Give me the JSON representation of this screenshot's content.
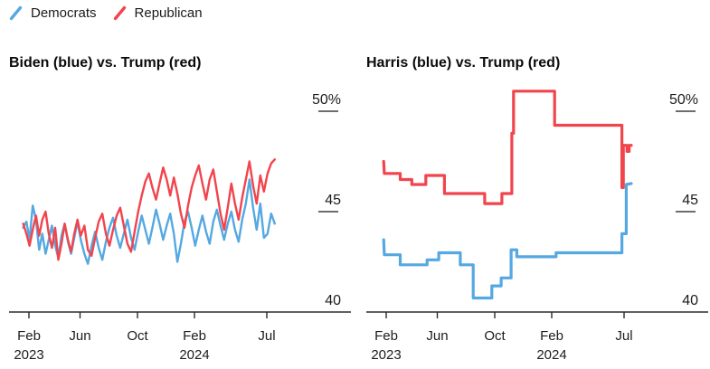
{
  "legend": {
    "items": [
      {
        "label": "Democrats",
        "color": "#55A8E1",
        "swatch": "slash-icon"
      },
      {
        "label": "Republican",
        "color": "#F2444D",
        "swatch": "slash-icon"
      }
    ]
  },
  "colors": {
    "democrat_blue": "#55A8E1",
    "republican_red": "#F2444D",
    "axis": "#2b2b2b",
    "tick_dash": "#3d3d3d",
    "label_text": "#1c1c1c"
  },
  "chart_data": [
    {
      "type": "line",
      "title": "Biden (blue) vs. Trump (red)",
      "x_unit": "months_since_Jan_2023",
      "xlim": [
        0.3,
        19
      ],
      "ylim": [
        40,
        51.5
      ],
      "grid": false,
      "legend_position": "top-left-shared",
      "x_ticks": [
        {
          "m": 1,
          "label": "Feb",
          "sublabel": "2023"
        },
        {
          "m": 5,
          "label": "Jun"
        },
        {
          "m": 9,
          "label": "Oct"
        },
        {
          "m": 13,
          "label": "Feb",
          "sublabel": "2024"
        },
        {
          "m": 18,
          "label": "Jul"
        }
      ],
      "y_ticks": [
        {
          "v": 50,
          "label": "50%"
        },
        {
          "v": 45,
          "label": "45"
        },
        {
          "v": 40,
          "label": "40"
        }
      ],
      "series": [
        {
          "name": "Biden (Democrats)",
          "color_key": "democrat_blue",
          "points": [
            [
              0.55,
              44.2
            ],
            [
              0.8,
              44.5
            ],
            [
              1.05,
              43.6
            ],
            [
              1.3,
              45.3
            ],
            [
              1.55,
              44.6
            ],
            [
              1.8,
              43.1
            ],
            [
              2.05,
              43.9
            ],
            [
              2.3,
              42.9
            ],
            [
              2.55,
              43.6
            ],
            [
              2.8,
              44.3
            ],
            [
              3.05,
              43.3
            ],
            [
              3.3,
              42.7
            ],
            [
              3.55,
              43.8
            ],
            [
              3.8,
              44.4
            ],
            [
              4.05,
              43.5
            ],
            [
              4.3,
              42.9
            ],
            [
              4.55,
              43.7
            ],
            [
              4.8,
              44.5
            ],
            [
              5.05,
              43.6
            ],
            [
              5.3,
              42.9
            ],
            [
              5.55,
              42.4
            ],
            [
              5.8,
              43.3
            ],
            [
              6.05,
              44.0
            ],
            [
              6.3,
              43.2
            ],
            [
              6.55,
              42.6
            ],
            [
              6.8,
              43.5
            ],
            [
              7.05,
              44.2
            ],
            [
              7.3,
              44.7
            ],
            [
              7.55,
              43.8
            ],
            [
              7.8,
              43.2
            ],
            [
              8.05,
              43.9
            ],
            [
              8.3,
              44.6
            ],
            [
              8.55,
              43.7
            ],
            [
              8.8,
              43.1
            ],
            [
              9.05,
              44.0
            ],
            [
              9.3,
              44.8
            ],
            [
              9.55,
              44.1
            ],
            [
              9.8,
              43.4
            ],
            [
              10.05,
              44.2
            ],
            [
              10.3,
              45.1
            ],
            [
              10.55,
              44.4
            ],
            [
              10.8,
              43.6
            ],
            [
              11.05,
              44.3
            ],
            [
              11.3,
              44.9
            ],
            [
              11.55,
              43.9
            ],
            [
              11.8,
              42.5
            ],
            [
              12.05,
              43.4
            ],
            [
              12.3,
              44.5
            ],
            [
              12.55,
              45.0
            ],
            [
              12.8,
              44.2
            ],
            [
              13.05,
              43.3
            ],
            [
              13.3,
              44.1
            ],
            [
              13.55,
              44.8
            ],
            [
              13.8,
              44.0
            ],
            [
              14.05,
              43.4
            ],
            [
              14.3,
              44.5
            ],
            [
              14.55,
              45.1
            ],
            [
              14.8,
              44.3
            ],
            [
              15.05,
              43.6
            ],
            [
              15.3,
              44.4
            ],
            [
              15.55,
              45.0
            ],
            [
              15.8,
              44.1
            ],
            [
              16.05,
              43.5
            ],
            [
              16.3,
              44.6
            ],
            [
              16.55,
              45.4
            ],
            [
              16.8,
              46.6
            ],
            [
              17.05,
              45.2
            ],
            [
              17.3,
              44.1
            ],
            [
              17.55,
              45.4
            ],
            [
              17.8,
              43.7
            ],
            [
              18.05,
              43.9
            ],
            [
              18.3,
              44.9
            ],
            [
              18.55,
              44.4
            ]
          ]
        },
        {
          "name": "Trump (Republican)",
          "color_key": "republican_red",
          "points": [
            [
              0.55,
              44.4
            ],
            [
              0.8,
              43.9
            ],
            [
              1.05,
              43.3
            ],
            [
              1.3,
              44.1
            ],
            [
              1.55,
              44.8
            ],
            [
              1.8,
              43.8
            ],
            [
              2.05,
              44.6
            ],
            [
              2.3,
              45.0
            ],
            [
              2.55,
              43.9
            ],
            [
              2.8,
              43.2
            ],
            [
              3.05,
              44.2
            ],
            [
              3.3,
              42.6
            ],
            [
              3.55,
              43.4
            ],
            [
              3.8,
              44.4
            ],
            [
              4.05,
              43.6
            ],
            [
              4.3,
              43.0
            ],
            [
              4.55,
              43.9
            ],
            [
              4.8,
              44.6
            ],
            [
              5.05,
              43.8
            ],
            [
              5.3,
              44.3
            ],
            [
              5.55,
              43.1
            ],
            [
              5.8,
              42.8
            ],
            [
              6.05,
              43.7
            ],
            [
              6.3,
              44.5
            ],
            [
              6.55,
              44.9
            ],
            [
              6.8,
              43.9
            ],
            [
              7.05,
              43.3
            ],
            [
              7.3,
              44.1
            ],
            [
              7.55,
              44.8
            ],
            [
              7.8,
              45.2
            ],
            [
              8.05,
              44.3
            ],
            [
              8.3,
              43.4
            ],
            [
              8.55,
              43.0
            ],
            [
              8.8,
              44.0
            ],
            [
              9.05,
              45.0
            ],
            [
              9.3,
              45.8
            ],
            [
              9.55,
              46.5
            ],
            [
              9.8,
              46.9
            ],
            [
              10.05,
              46.2
            ],
            [
              10.3,
              45.6
            ],
            [
              10.55,
              46.4
            ],
            [
              10.8,
              47.2
            ],
            [
              11.05,
              46.6
            ],
            [
              11.3,
              45.8
            ],
            [
              11.55,
              46.7
            ],
            [
              11.8,
              45.9
            ],
            [
              12.05,
              44.9
            ],
            [
              12.3,
              44.2
            ],
            [
              12.55,
              45.3
            ],
            [
              12.8,
              46.2
            ],
            [
              13.05,
              46.8
            ],
            [
              13.3,
              47.3
            ],
            [
              13.55,
              46.4
            ],
            [
              13.8,
              45.6
            ],
            [
              14.05,
              46.6
            ],
            [
              14.3,
              47.1
            ],
            [
              14.55,
              46.0
            ],
            [
              14.8,
              44.9
            ],
            [
              15.05,
              44.1
            ],
            [
              15.3,
              45.2
            ],
            [
              15.55,
              46.4
            ],
            [
              15.8,
              45.4
            ],
            [
              16.05,
              44.6
            ],
            [
              16.3,
              45.7
            ],
            [
              16.55,
              46.6
            ],
            [
              16.8,
              47.5
            ],
            [
              17.05,
              46.3
            ],
            [
              17.3,
              45.4
            ],
            [
              17.55,
              46.8
            ],
            [
              17.8,
              46.0
            ],
            [
              18.05,
              46.9
            ],
            [
              18.3,
              47.4
            ],
            [
              18.55,
              47.6
            ]
          ]
        }
      ]
    },
    {
      "type": "step-line",
      "title": "Harris (blue) vs. Trump (red)",
      "x_unit": "months_since_Jan_2023",
      "xlim": [
        0.3,
        19
      ],
      "ylim": [
        40,
        51.5
      ],
      "grid": false,
      "legend_position": "top-left-shared",
      "x_ticks": [
        {
          "m": 1,
          "label": "Feb",
          "sublabel": "2023"
        },
        {
          "m": 5,
          "label": "Jun"
        },
        {
          "m": 9,
          "label": "Oct"
        },
        {
          "m": 13,
          "label": "Feb",
          "sublabel": "2024"
        },
        {
          "m": 18,
          "label": "Jul"
        }
      ],
      "y_ticks": [
        {
          "v": 50,
          "label": "50%"
        },
        {
          "v": 45,
          "label": "45"
        },
        {
          "v": 40,
          "label": "40"
        }
      ],
      "series": [
        {
          "name": "Harris (Democrats)",
          "color_key": "democrat_blue",
          "points": [
            [
              0.8,
              43.6
            ],
            [
              0.85,
              42.85
            ],
            [
              2.1,
              42.85
            ],
            [
              2.1,
              42.35
            ],
            [
              4.2,
              42.35
            ],
            [
              4.2,
              42.6
            ],
            [
              5.1,
              42.6
            ],
            [
              5.1,
              42.95
            ],
            [
              6.6,
              42.95
            ],
            [
              6.6,
              42.35
            ],
            [
              7.5,
              42.35
            ],
            [
              7.5,
              40.7
            ],
            [
              8.8,
              40.7
            ],
            [
              8.8,
              41.3
            ],
            [
              9.45,
              41.3
            ],
            [
              9.45,
              41.7
            ],
            [
              10.15,
              41.7
            ],
            [
              10.15,
              43.1
            ],
            [
              10.55,
              43.1
            ],
            [
              10.55,
              42.75
            ],
            [
              13.3,
              42.75
            ],
            [
              13.3,
              42.95
            ],
            [
              17.85,
              42.95
            ],
            [
              17.85,
              43.9
            ],
            [
              18.15,
              43.9
            ],
            [
              18.15,
              46.35
            ],
            [
              18.5,
              46.4
            ]
          ]
        },
        {
          "name": "Trump (Republican)",
          "color_key": "republican_red",
          "points": [
            [
              0.8,
              47.5
            ],
            [
              0.85,
              46.9
            ],
            [
              2.1,
              46.9
            ],
            [
              2.1,
              46.6
            ],
            [
              3.0,
              46.6
            ],
            [
              3.0,
              46.35
            ],
            [
              4.1,
              46.35
            ],
            [
              4.1,
              46.8
            ],
            [
              5.5,
              46.8
            ],
            [
              5.5,
              45.9
            ],
            [
              8.3,
              45.9
            ],
            [
              8.3,
              45.4
            ],
            [
              9.5,
              45.4
            ],
            [
              9.5,
              45.9
            ],
            [
              10.2,
              45.9
            ],
            [
              10.2,
              48.9
            ],
            [
              10.32,
              48.9
            ],
            [
              10.32,
              51.0
            ],
            [
              13.2,
              51.0
            ],
            [
              13.2,
              49.3
            ],
            [
              17.85,
              49.3
            ],
            [
              17.85,
              46.2
            ],
            [
              17.95,
              46.2
            ],
            [
              17.95,
              48.3
            ],
            [
              18.2,
              48.3
            ],
            [
              18.2,
              48.0
            ],
            [
              18.35,
              48.0
            ],
            [
              18.35,
              48.3
            ],
            [
              18.5,
              48.3
            ]
          ]
        }
      ]
    }
  ]
}
